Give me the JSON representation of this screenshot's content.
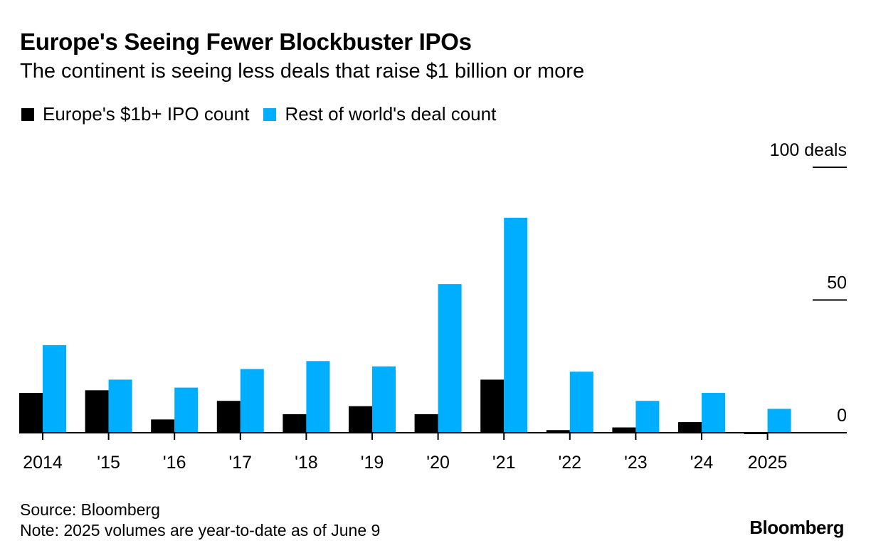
{
  "header": {
    "title": "Europe's Seeing Fewer Blockbuster IPOs",
    "subtitle": "The continent is seeing less deals that raise $1 billion or more"
  },
  "footer": {
    "source": "Source: Bloomberg",
    "note": "Note: 2025 volumes are year-to-date as of June 9",
    "logo": "Bloomberg"
  },
  "colors": {
    "europe": "#000000",
    "rest_of_world": "#00AEFF"
  },
  "chart_data": {
    "type": "bar",
    "title": "Europe's Seeing Fewer Blockbuster IPOs",
    "subtitle": "The continent is seeing less deals that raise $1 billion or more",
    "xlabel": "",
    "ylabel": "deals",
    "ylim": [
      0,
      100
    ],
    "y_ticks": [
      {
        "value": 0,
        "label": "0"
      },
      {
        "value": 50,
        "label": "50"
      },
      {
        "value": 100,
        "label": "100 deals"
      }
    ],
    "grid": true,
    "legend_position": "top-left",
    "categories": [
      "2014",
      "'15",
      "'16",
      "'17",
      "'18",
      "'19",
      "'20",
      "'21",
      "'22",
      "'23",
      "'24",
      "2025"
    ],
    "series": [
      {
        "name": "Europe's $1b+ IPO count",
        "color": "#000000",
        "values": [
          15,
          16,
          5,
          12,
          7,
          10,
          7,
          20,
          1,
          2,
          4,
          0
        ]
      },
      {
        "name": "Rest of world's deal count",
        "color": "#00AEFF",
        "values": [
          33,
          20,
          17,
          24,
          27,
          25,
          56,
          81,
          23,
          12,
          15,
          9
        ]
      }
    ]
  }
}
